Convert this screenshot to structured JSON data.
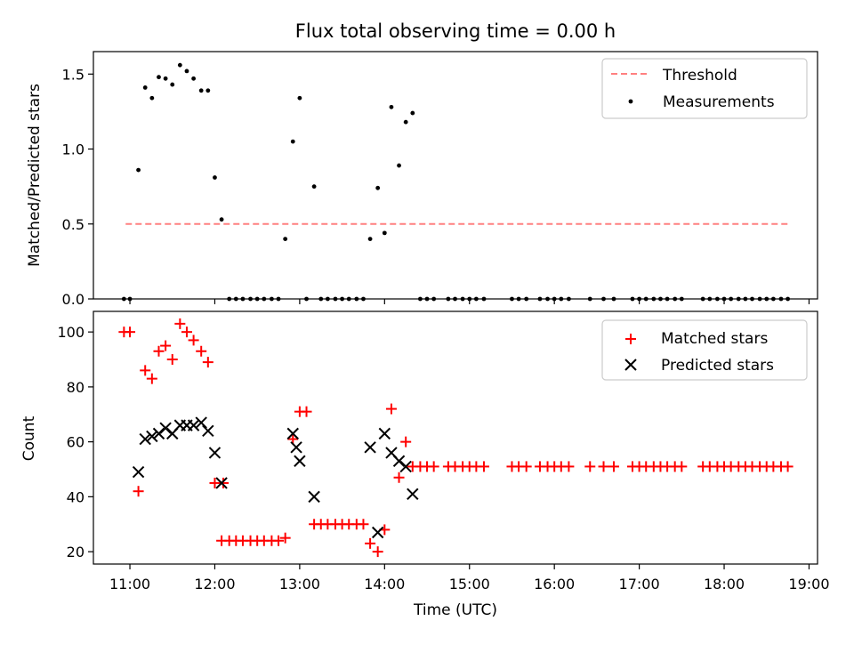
{
  "colors": {
    "threshold": "#ff8080",
    "measurement": "#000000",
    "matched": "#ff0000",
    "predicted": "#000000"
  },
  "chart_data": [
    {
      "type": "scatter",
      "title": "Flux total observing time = 0.00 h",
      "ylabel": "Matched/Predicted stars",
      "xlabel": "",
      "xlim": [
        10.57,
        19.1
      ],
      "ylim": [
        0,
        1.65
      ],
      "yticks": [
        {
          "value": 0.0,
          "label": "0.0"
        },
        {
          "value": 0.5,
          "label": "0.5"
        },
        {
          "value": 1.0,
          "label": "1.0"
        },
        {
          "value": 1.5,
          "label": "1.5"
        }
      ],
      "grid": false,
      "legend_position": "top-right",
      "series": [
        {
          "name": "Threshold",
          "kind": "dashed-line",
          "x": [
            10.95,
            18.75
          ],
          "y": [
            0.5,
            0.5
          ]
        },
        {
          "name": "Measurements",
          "kind": "dots",
          "x": [
            10.93,
            11.0,
            11.1,
            11.18,
            11.26,
            11.34,
            11.42,
            11.5,
            11.59,
            11.67,
            11.75,
            11.84,
            11.92,
            12.0,
            12.08,
            12.17,
            12.25,
            12.33,
            12.42,
            12.5,
            12.58,
            12.67,
            12.75,
            12.83,
            12.92,
            13.0,
            13.08,
            13.17,
            13.25,
            13.33,
            13.42,
            13.5,
            13.58,
            13.67,
            13.75,
            13.83,
            13.92,
            14.0,
            14.08,
            14.17,
            14.25,
            14.33,
            14.42,
            14.5,
            14.58,
            14.75,
            14.83,
            14.92,
            15.0,
            15.08,
            15.17,
            15.5,
            15.58,
            15.67,
            15.83,
            15.92,
            16.0,
            16.08,
            16.17,
            16.42,
            16.58,
            16.7,
            16.92,
            17.0,
            17.08,
            17.17,
            17.25,
            17.33,
            17.42,
            17.5,
            17.75,
            17.83,
            17.92,
            18.0,
            18.08,
            18.17,
            18.25,
            18.33,
            18.42,
            18.5,
            18.58,
            18.67,
            18.75
          ],
          "y": [
            0.0,
            0.0,
            0.86,
            1.41,
            1.34,
            1.48,
            1.47,
            1.43,
            1.56,
            1.52,
            1.47,
            1.39,
            1.39,
            0.81,
            0.53,
            0.0,
            0.0,
            0.0,
            0.0,
            0.0,
            0.0,
            0.0,
            0.0,
            0.4,
            1.05,
            1.34,
            0.0,
            0.75,
            0.0,
            0.0,
            0.0,
            0.0,
            0.0,
            0.0,
            0.0,
            0.4,
            0.74,
            0.44,
            1.28,
            0.89,
            1.18,
            1.24,
            0.0,
            0.0,
            0.0,
            0.0,
            0.0,
            0.0,
            0.0,
            0.0,
            0.0,
            0.0,
            0.0,
            0.0,
            0.0,
            0.0,
            0.0,
            0.0,
            0.0,
            0.0,
            0.0,
            0.0,
            0.0,
            0.0,
            0.0,
            0.0,
            0.0,
            0.0,
            0.0,
            0.0,
            0.0,
            0.0,
            0.0,
            0.0,
            0.0,
            0.0,
            0.0,
            0.0,
            0.0,
            0.0,
            0.0,
            0.0,
            0.0
          ]
        }
      ]
    },
    {
      "type": "scatter",
      "title": "",
      "ylabel": "Count",
      "xlabel": "Time (UTC)",
      "xlim": [
        10.57,
        19.1
      ],
      "ylim": [
        15.5,
        107.5
      ],
      "yticks": [
        {
          "value": 20,
          "label": "20"
        },
        {
          "value": 40,
          "label": "40"
        },
        {
          "value": 60,
          "label": "60"
        },
        {
          "value": 80,
          "label": "80"
        },
        {
          "value": 100,
          "label": "100"
        }
      ],
      "xticks": [
        {
          "value": 11,
          "label": "11:00"
        },
        {
          "value": 12,
          "label": "12:00"
        },
        {
          "value": 13,
          "label": "13:00"
        },
        {
          "value": 14,
          "label": "14:00"
        },
        {
          "value": 15,
          "label": "15:00"
        },
        {
          "value": 16,
          "label": "16:00"
        },
        {
          "value": 17,
          "label": "17:00"
        },
        {
          "value": 18,
          "label": "18:00"
        },
        {
          "value": 19,
          "label": "19:00"
        }
      ],
      "grid": false,
      "legend_position": "top-right",
      "series": [
        {
          "name": "Matched stars",
          "marker": "plus",
          "x": [
            10.93,
            11.0,
            11.1,
            11.18,
            11.26,
            11.34,
            11.42,
            11.5,
            11.59,
            11.67,
            11.75,
            11.84,
            11.92,
            12.0,
            12.08,
            12.1,
            12.17,
            12.25,
            12.33,
            12.42,
            12.5,
            12.58,
            12.67,
            12.75,
            12.83,
            12.92,
            13.0,
            13.08,
            13.17,
            13.25,
            13.33,
            13.42,
            13.5,
            13.58,
            13.67,
            13.75,
            13.83,
            13.92,
            14.0,
            14.08,
            14.17,
            14.25,
            14.33,
            14.42,
            14.5,
            14.58,
            14.75,
            14.83,
            14.92,
            15.0,
            15.08,
            15.17,
            15.5,
            15.58,
            15.67,
            15.83,
            15.92,
            16.0,
            16.08,
            16.17,
            16.42,
            16.58,
            16.7,
            16.92,
            17.0,
            17.08,
            17.17,
            17.25,
            17.33,
            17.42,
            17.5,
            17.75,
            17.83,
            17.92,
            18.0,
            18.08,
            18.17,
            18.25,
            18.33,
            18.42,
            18.5,
            18.58,
            18.67,
            18.75
          ],
          "y": [
            100,
            100,
            42,
            86,
            83,
            93,
            95,
            90,
            103,
            100,
            97,
            93,
            89,
            45,
            24,
            45,
            24,
            24,
            24,
            24,
            24,
            24,
            24,
            24,
            25,
            61,
            71,
            71,
            30,
            30,
            30,
            30,
            30,
            30,
            30,
            30,
            23,
            20,
            28,
            72,
            47,
            60,
            51,
            51,
            51,
            51,
            51,
            51,
            51,
            51,
            51,
            51,
            51,
            51,
            51,
            51,
            51,
            51,
            51,
            51,
            51,
            51,
            51,
            51,
            51,
            51,
            51,
            51,
            51,
            51,
            51,
            51,
            51,
            51,
            51,
            51,
            51,
            51,
            51,
            51,
            51,
            51,
            51,
            51
          ]
        },
        {
          "name": "Predicted stars",
          "marker": "x",
          "x": [
            11.1,
            11.18,
            11.26,
            11.34,
            11.42,
            11.5,
            11.59,
            11.67,
            11.75,
            11.84,
            11.92,
            12.0,
            12.08,
            12.92,
            12.96,
            13.0,
            13.17,
            13.83,
            13.92,
            14.0,
            14.08,
            14.17,
            14.25,
            14.33
          ],
          "y": [
            49,
            61,
            62,
            63,
            65,
            63,
            66,
            66,
            66,
            67,
            64,
            56,
            45,
            63,
            58,
            53,
            40,
            58,
            27,
            63,
            56,
            53,
            51,
            41
          ]
        }
      ]
    }
  ]
}
